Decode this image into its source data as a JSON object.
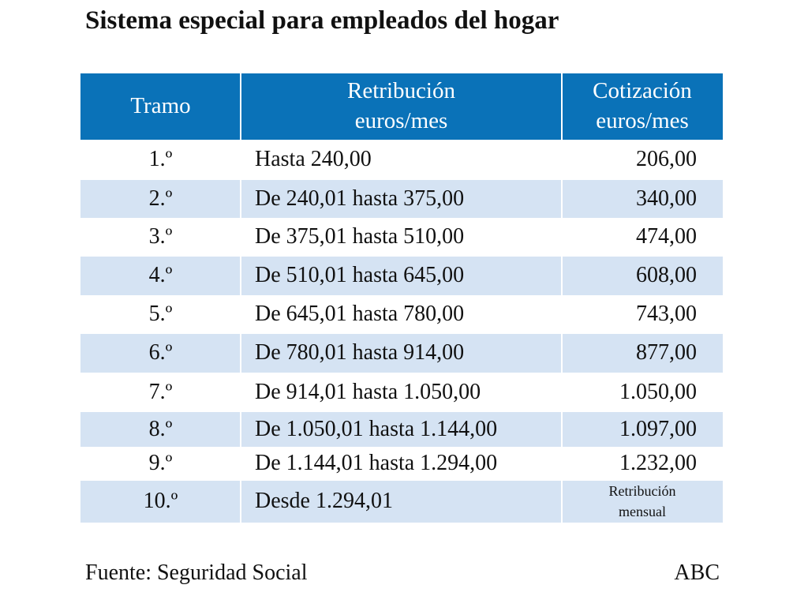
{
  "header": {
    "title": "Sistema especial para empleados del hogar"
  },
  "table": {
    "columns": [
      [
        "Tramo"
      ],
      [
        "Retribución",
        "euros/mes"
      ],
      [
        "Cotización",
        "euros/mes"
      ]
    ],
    "rows": [
      [
        "1.º",
        "Hasta 240,00",
        "206,00"
      ],
      [
        "2.º",
        "De 240,01 hasta 375,00",
        "340,00"
      ],
      [
        "3.º",
        "De 375,01 hasta 510,00",
        "474,00"
      ],
      [
        "4.º",
        "De 510,01 hasta 645,00",
        "608,00"
      ],
      [
        "5.º",
        "De 645,01 hasta 780,00",
        "743,00"
      ],
      [
        "6.º",
        "De 780,01 hasta 914,00",
        "877,00"
      ],
      [
        "7.º",
        "De 914,01 hasta 1.050,00",
        "1.050,00"
      ],
      [
        "8.º",
        "De 1.050,01 hasta 1.144,00",
        "1.097,00"
      ],
      [
        "9.º",
        "De 1.144,01 hasta 1.294,00",
        "1.232,00"
      ],
      [
        "10.º",
        "Desde 1.294,01",
        [
          "Retribución",
          "mensual"
        ]
      ]
    ]
  },
  "footer": {
    "source": "Fuente: Seguridad Social",
    "brand": "ABC"
  }
}
